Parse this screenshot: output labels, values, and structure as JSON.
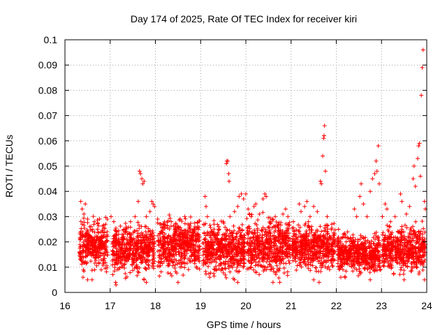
{
  "chart_data": {
    "type": "scatter",
    "title": "Day 174 of 2025, Rate Of TEC Index for receiver kiri",
    "xlabel": "GPS time / hours",
    "ylabel": "ROTI / TECUs",
    "xlim": [
      16,
      24
    ],
    "ylim": [
      0,
      0.1
    ],
    "x_ticks": [
      16,
      17,
      18,
      19,
      20,
      21,
      22,
      23,
      24
    ],
    "y_ticks": [
      0,
      0.01,
      0.02,
      0.03,
      0.04,
      0.05,
      0.06,
      0.07,
      0.08,
      0.09,
      0.1
    ],
    "x_tick_labels": [
      "16",
      "17",
      "18",
      "19",
      "20",
      "21",
      "22",
      "23",
      "24"
    ],
    "y_tick_labels": [
      "0",
      "0.01",
      "0.02",
      "0.03",
      "0.04",
      "0.05",
      "0.06",
      "0.07",
      "0.08",
      "0.09",
      "0.1"
    ],
    "grid": true,
    "marker": "+",
    "color": "#ff0000",
    "series": [
      {
        "name": "ROTI",
        "points": [
          [
            16.35,
            0.036
          ],
          [
            16.38,
            0.033
          ],
          [
            16.42,
            0.031
          ],
          [
            16.45,
            0.035
          ],
          [
            16.5,
            0.029
          ],
          [
            16.55,
            0.026
          ],
          [
            16.65,
            0.028
          ],
          [
            16.72,
            0.025
          ],
          [
            16.8,
            0.024
          ],
          [
            16.9,
            0.027
          ],
          [
            17.02,
            0.03
          ],
          [
            17.08,
            0.028
          ],
          [
            17.15,
            0.024
          ],
          [
            17.3,
            0.025
          ],
          [
            17.45,
            0.028
          ],
          [
            17.55,
            0.03
          ],
          [
            17.62,
            0.036
          ],
          [
            17.65,
            0.048
          ],
          [
            17.67,
            0.047
          ],
          [
            17.7,
            0.045
          ],
          [
            17.72,
            0.043
          ],
          [
            17.75,
            0.044
          ],
          [
            17.8,
            0.03
          ],
          [
            17.88,
            0.032
          ],
          [
            17.92,
            0.036
          ],
          [
            17.95,
            0.035
          ],
          [
            17.98,
            0.034
          ],
          [
            18.05,
            0.029
          ],
          [
            18.12,
            0.027
          ],
          [
            18.2,
            0.026
          ],
          [
            18.35,
            0.028
          ],
          [
            18.45,
            0.027
          ],
          [
            18.55,
            0.029
          ],
          [
            18.65,
            0.03
          ],
          [
            18.72,
            0.027
          ],
          [
            18.85,
            0.024
          ],
          [
            18.98,
            0.022
          ],
          [
            19.1,
            0.038
          ],
          [
            19.12,
            0.034
          ],
          [
            19.15,
            0.03
          ],
          [
            19.28,
            0.023
          ],
          [
            19.4,
            0.026
          ],
          [
            19.5,
            0.028
          ],
          [
            19.57,
            0.051
          ],
          [
            19.58,
            0.052
          ],
          [
            19.6,
            0.052
          ],
          [
            19.62,
            0.047
          ],
          [
            19.63,
            0.044
          ],
          [
            19.65,
            0.03
          ],
          [
            19.75,
            0.032
          ],
          [
            19.82,
            0.034
          ],
          [
            19.85,
            0.038
          ],
          [
            19.9,
            0.039
          ],
          [
            19.95,
            0.037
          ],
          [
            20.0,
            0.039
          ],
          [
            20.05,
            0.033
          ],
          [
            20.12,
            0.03
          ],
          [
            20.18,
            0.034
          ],
          [
            20.22,
            0.035
          ],
          [
            20.3,
            0.031
          ],
          [
            20.38,
            0.037
          ],
          [
            20.42,
            0.039
          ],
          [
            20.45,
            0.038
          ],
          [
            20.55,
            0.028
          ],
          [
            20.65,
            0.03
          ],
          [
            20.72,
            0.027
          ],
          [
            20.82,
            0.031
          ],
          [
            20.88,
            0.033
          ],
          [
            20.93,
            0.03
          ],
          [
            21.05,
            0.028
          ],
          [
            21.18,
            0.035
          ],
          [
            21.22,
            0.032
          ],
          [
            21.3,
            0.034
          ],
          [
            21.35,
            0.036
          ],
          [
            21.42,
            0.03
          ],
          [
            21.5,
            0.034
          ],
          [
            21.58,
            0.032
          ],
          [
            21.65,
            0.044
          ],
          [
            21.67,
            0.043
          ],
          [
            21.7,
            0.054
          ],
          [
            21.72,
            0.061
          ],
          [
            21.73,
            0.062
          ],
          [
            21.74,
            0.066
          ],
          [
            21.76,
            0.048
          ],
          [
            21.8,
            0.03
          ],
          [
            21.9,
            0.027
          ],
          [
            22.05,
            0.025
          ],
          [
            22.15,
            0.022
          ],
          [
            22.25,
            0.024
          ],
          [
            22.4,
            0.033
          ],
          [
            22.45,
            0.03
          ],
          [
            22.52,
            0.038
          ],
          [
            22.55,
            0.043
          ],
          [
            22.6,
            0.035
          ],
          [
            22.68,
            0.03
          ],
          [
            22.75,
            0.04
          ],
          [
            22.8,
            0.045
          ],
          [
            22.85,
            0.047
          ],
          [
            22.88,
            0.052
          ],
          [
            22.9,
            0.048
          ],
          [
            22.93,
            0.058
          ],
          [
            22.95,
            0.043
          ],
          [
            23.02,
            0.03
          ],
          [
            23.08,
            0.035
          ],
          [
            23.12,
            0.033
          ],
          [
            23.2,
            0.028
          ],
          [
            23.3,
            0.03
          ],
          [
            23.42,
            0.039
          ],
          [
            23.45,
            0.036
          ],
          [
            23.55,
            0.031
          ],
          [
            23.62,
            0.034
          ],
          [
            23.7,
            0.045
          ],
          [
            23.72,
            0.05
          ],
          [
            23.75,
            0.042
          ],
          [
            23.8,
            0.053
          ],
          [
            23.82,
            0.058
          ],
          [
            23.84,
            0.059
          ],
          [
            23.86,
            0.046
          ],
          [
            23.88,
            0.078
          ],
          [
            23.9,
            0.089
          ],
          [
            23.92,
            0.096
          ],
          [
            23.95,
            0.036
          ],
          [
            23.97,
            0.033
          ],
          [
            16.4,
            0.006
          ],
          [
            16.5,
            0.005
          ],
          [
            16.6,
            0.005
          ],
          [
            17.12,
            0.004
          ],
          [
            17.13,
            0.003
          ],
          [
            17.75,
            0.005
          ],
          [
            17.8,
            0.004
          ],
          [
            18.5,
            0.004
          ],
          [
            19.2,
            0.006
          ],
          [
            19.75,
            0.005
          ],
          [
            19.82,
            0.004
          ],
          [
            20.6,
            0.004
          ],
          [
            20.75,
            0.004
          ],
          [
            21.5,
            0.005
          ],
          [
            21.62,
            0.004
          ],
          [
            22.1,
            0.006
          ],
          [
            22.75,
            0.005
          ],
          [
            23.5,
            0.005
          ],
          [
            23.95,
            0.005
          ]
        ],
        "dense_bands": [
          {
            "x": [
              16.32,
              16.95
            ],
            "y": [
              0.006,
              0.028
            ]
          },
          {
            "x": [
              17.05,
              17.98
            ],
            "y": [
              0.004,
              0.026
            ]
          },
          {
            "x": [
              18.05,
              18.98
            ],
            "y": [
              0.005,
              0.029
            ]
          },
          {
            "x": [
              19.05,
              19.98
            ],
            "y": [
              0.004,
              0.027
            ]
          },
          {
            "x": [
              20.02,
              20.98
            ],
            "y": [
              0.004,
              0.029
            ]
          },
          {
            "x": [
              21.02,
              21.98
            ],
            "y": [
              0.006,
              0.027
            ]
          },
          {
            "x": [
              22.02,
              22.98
            ],
            "y": [
              0.005,
              0.023
            ]
          },
          {
            "x": [
              23.02,
              23.98
            ],
            "y": [
              0.005,
              0.026
            ]
          }
        ]
      }
    ]
  }
}
